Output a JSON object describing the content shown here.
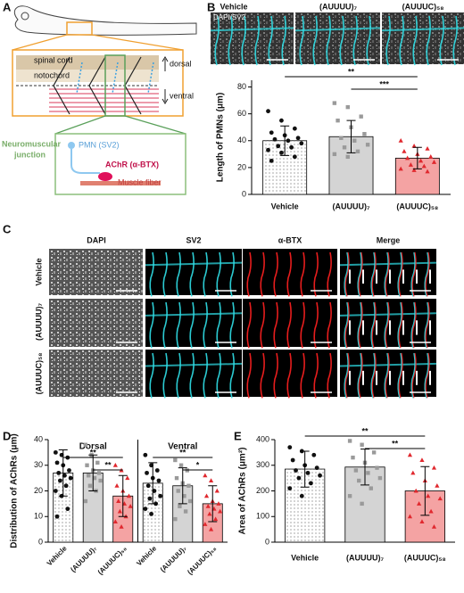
{
  "panel_labels": [
    "A",
    "B",
    "C",
    "D",
    "E"
  ],
  "schematic": {
    "spinal_cord": "spinal cord",
    "notochord": "notochord",
    "dorsal": "dorsal",
    "ventral": "ventral",
    "junction": [
      "Neuromuscular",
      "junction"
    ],
    "pmn": "PMN (SV2)",
    "achr": "AChR (α-BTX)",
    "muscle": "Muscle fiber"
  },
  "images_b": {
    "stain": "DAPI/SV2",
    "conditions": [
      "Vehicle",
      "(AUUUU)₇",
      "(AUUUC)₅₈"
    ]
  },
  "images_c": {
    "channels": [
      "DAPI",
      "SV2",
      "α-BTX",
      "Merge"
    ],
    "conditions": [
      "Vehicle",
      "(AUUUU)₇",
      "(AUUUC)₅₈"
    ]
  },
  "chart_data": [
    {
      "type": "bar",
      "ylabel": "Length of PMNs (μm)",
      "categories": [
        "Vehicle",
        "(AUUUU)₇",
        "(AUUUC)₅₈"
      ],
      "colors": [
        "#ffffff",
        "#d4d4d4",
        "#f4a3a3"
      ],
      "patterns": [
        "dots",
        null,
        null
      ],
      "point_colors": [
        "#111111",
        "#9a9a9a",
        "#e0282e"
      ],
      "markers": [
        "circle",
        "square",
        "triangle"
      ],
      "ylim": [
        0,
        85
      ],
      "yticks": [
        0,
        20,
        40,
        60,
        80
      ],
      "groups": [
        {
          "values": [
            40,
            43,
            27
          ],
          "errors": [
            11,
            12,
            8
          ],
          "points": [
            [
              62,
              55,
              49,
              46,
              44,
              42,
              41,
              40,
              38,
              36,
              35,
              33,
              31,
              28,
              25
            ],
            [
              68,
              65,
              58,
              55,
              50,
              45,
              42,
              40,
              37,
              35,
              32,
              30,
              28
            ],
            [
              40,
              36,
              34,
              32,
              30,
              28,
              27,
              25,
              24,
              22,
              21,
              19,
              18,
              17
            ]
          ]
        }
      ],
      "annotations": [
        {
          "text": "**",
          "group": 0,
          "from": 0,
          "to": 2
        },
        {
          "text": "***",
          "group": 0,
          "from": 1,
          "to": 2
        }
      ]
    },
    {
      "type": "bar",
      "ylabel": "Distribution of AChRs (μm)",
      "categories": [
        "Vehicle",
        "(AUUUU)₇",
        "(AUUUC)₅₈"
      ],
      "colors": [
        "#ffffff",
        "#d4d4d4",
        "#f4a3a3"
      ],
      "patterns": [
        "dots",
        null,
        null
      ],
      "point_colors": [
        "#111111",
        "#9a9a9a",
        "#e0282e"
      ],
      "markers": [
        "circle",
        "square",
        "triangle"
      ],
      "ylim": [
        0,
        40
      ],
      "yticks": [
        0,
        10,
        20,
        30,
        40
      ],
      "groups": [
        {
          "name": "Dorsal",
          "values": [
            27,
            27,
            18
          ],
          "errors": [
            9,
            7,
            8
          ],
          "points": [
            [
              35,
              34,
              33,
              31,
              30,
              28,
              27,
              26,
              25,
              24,
              22,
              20,
              18,
              13,
              10
            ],
            [
              38,
              34,
              31,
              30,
              28,
              27,
              26,
              25,
              24,
              22,
              20,
              16
            ],
            [
              30,
              28,
              25,
              22,
              20,
              18,
              16,
              15,
              14,
              12,
              10,
              8,
              6
            ]
          ]
        },
        {
          "name": "Ventral",
          "values": [
            23,
            22,
            15
          ],
          "errors": [
            8,
            7,
            7
          ],
          "points": [
            [
              34,
              30,
              28,
              27,
              25,
              24,
              22,
              20,
              18,
              17,
              15,
              13,
              11
            ],
            [
              32,
              30,
              28,
              25,
              23,
              22,
              20,
              18,
              16,
              14,
              12,
              9
            ],
            [
              26,
              24,
              20,
              18,
              16,
              15,
              14,
              13,
              12,
              11,
              9,
              7,
              5
            ]
          ]
        }
      ],
      "annotations": [
        {
          "text": "**",
          "group": 0,
          "from": 0,
          "to": 2
        },
        {
          "text": "**",
          "group": 0,
          "from": 1,
          "to": 2
        },
        {
          "text": "**",
          "group": 1,
          "from": 0,
          "to": 2
        },
        {
          "text": "*",
          "group": 1,
          "from": 1,
          "to": 2
        }
      ]
    },
    {
      "type": "bar",
      "ylabel": "Area of AChRs (μm²)",
      "categories": [
        "Vehicle",
        "(AUUUU)₇",
        "(AUUUC)₅₈"
      ],
      "colors": [
        "#ffffff",
        "#d4d4d4",
        "#f4a3a3"
      ],
      "patterns": [
        "dots",
        null,
        null
      ],
      "point_colors": [
        "#111111",
        "#9a9a9a",
        "#e0282e"
      ],
      "markers": [
        "circle",
        "square",
        "triangle"
      ],
      "ylim": [
        0,
        400
      ],
      "yticks": [
        0,
        100,
        200,
        300,
        400
      ],
      "groups": [
        {
          "values": [
            285,
            293,
            200
          ],
          "errors": [
            70,
            70,
            95
          ],
          "points": [
            [
              370,
              355,
              340,
              320,
              300,
              290,
              280,
              270,
              260,
              250,
              230,
              210,
              180
            ],
            [
              395,
              380,
              350,
              330,
              310,
              290,
              280,
              270,
              250,
              240,
              210,
              180,
              150
            ],
            [
              340,
              320,
              290,
              270,
              240,
              220,
              200,
              180,
              170,
              150,
              120,
              100,
              80,
              60
            ]
          ]
        }
      ],
      "annotations": [
        {
          "text": "**",
          "group": 0,
          "from": 0,
          "to": 2
        },
        {
          "text": "**",
          "group": 0,
          "from": 1,
          "to": 2
        }
      ]
    }
  ]
}
